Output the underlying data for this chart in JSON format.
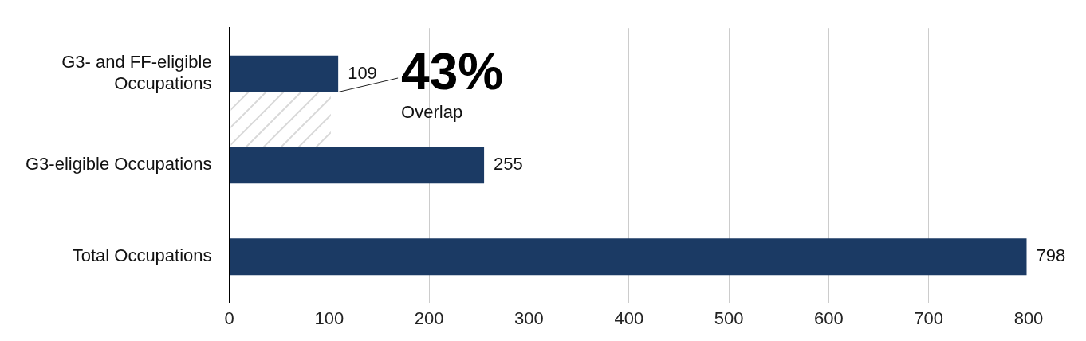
{
  "chart_data": {
    "type": "bar",
    "orientation": "horizontal",
    "categories": [
      "G3- and FF-eligible Occupations",
      "G3-eligible Occupations",
      "Total Occupations"
    ],
    "values": [
      109,
      255,
      798
    ],
    "color": "#1b3a64",
    "data_labels": true,
    "xlim": [
      0,
      800
    ],
    "xticks": [
      0,
      100,
      200,
      300,
      400,
      500,
      600,
      700,
      800
    ],
    "grid": "x",
    "legend": false,
    "annotations": [
      {
        "text": "43%",
        "x": 109,
        "y": "G3- and FF-eligible Occupations"
      },
      "Overlap"
    ]
  }
}
